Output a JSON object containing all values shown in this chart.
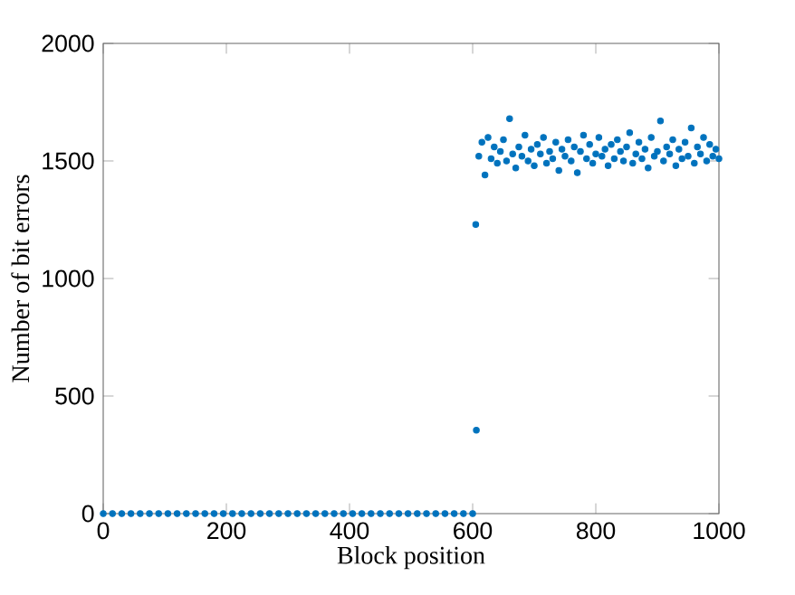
{
  "chart_data": {
    "type": "scatter",
    "xlabel": "Block position",
    "ylabel": "Number of bit errors",
    "xlim": [
      0,
      1000
    ],
    "ylim": [
      0,
      2000
    ],
    "xticks": [
      0,
      200,
      400,
      600,
      800,
      1000
    ],
    "yticks": [
      0,
      500,
      1000,
      1500,
      2000
    ],
    "grid": false,
    "series": [
      {
        "color": "#0072bd",
        "x": [
          0,
          15,
          30,
          45,
          60,
          75,
          90,
          105,
          120,
          135,
          150,
          165,
          180,
          195,
          210,
          225,
          240,
          255,
          270,
          285,
          300,
          315,
          330,
          345,
          360,
          375,
          390,
          405,
          420,
          435,
          450,
          465,
          480,
          495,
          510,
          525,
          540,
          555,
          570,
          585,
          600,
          605,
          606,
          610,
          615,
          620,
          625,
          630,
          635,
          640,
          645,
          650,
          655,
          660,
          665,
          670,
          675,
          680,
          685,
          690,
          695,
          700,
          705,
          710,
          715,
          720,
          725,
          730,
          735,
          740,
          745,
          750,
          755,
          760,
          765,
          770,
          775,
          780,
          785,
          790,
          795,
          800,
          805,
          810,
          815,
          820,
          825,
          830,
          835,
          840,
          845,
          850,
          855,
          860,
          865,
          870,
          875,
          880,
          885,
          890,
          895,
          900,
          905,
          910,
          915,
          920,
          925,
          930,
          935,
          940,
          945,
          950,
          955,
          960,
          965,
          970,
          975,
          980,
          985,
          990,
          995,
          1000
        ],
        "values": [
          0,
          0,
          0,
          0,
          0,
          0,
          0,
          0,
          0,
          0,
          0,
          0,
          0,
          0,
          0,
          0,
          0,
          0,
          0,
          0,
          0,
          0,
          0,
          0,
          0,
          0,
          0,
          0,
          0,
          0,
          0,
          0,
          0,
          0,
          0,
          0,
          0,
          0,
          0,
          0,
          0,
          1230,
          355,
          1520,
          1580,
          1440,
          1600,
          1510,
          1560,
          1490,
          1540,
          1590,
          1500,
          1680,
          1530,
          1470,
          1560,
          1520,
          1610,
          1500,
          1550,
          1480,
          1570,
          1530,
          1600,
          1490,
          1540,
          1510,
          1580,
          1460,
          1550,
          1520,
          1590,
          1500,
          1560,
          1450,
          1540,
          1610,
          1510,
          1570,
          1490,
          1530,
          1600,
          1520,
          1550,
          1480,
          1570,
          1510,
          1590,
          1540,
          1500,
          1560,
          1620,
          1490,
          1530,
          1580,
          1510,
          1550,
          1470,
          1600,
          1520,
          1540,
          1670,
          1500,
          1560,
          1530,
          1590,
          1480,
          1550,
          1510,
          1580,
          1520,
          1640,
          1490,
          1560,
          1530,
          1600,
          1500,
          1570,
          1520,
          1550,
          1510
        ]
      }
    ]
  }
}
